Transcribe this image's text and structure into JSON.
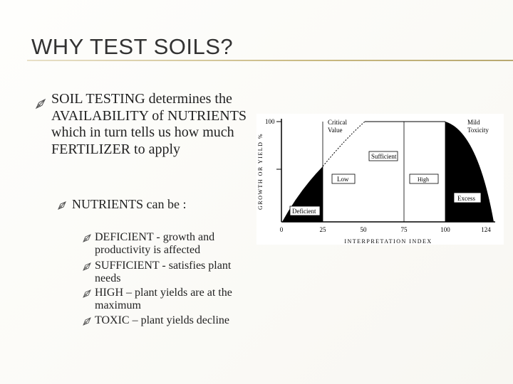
{
  "slide": {
    "title": "WHY TEST SOILS?",
    "bullet": "SOIL TESTING determines the AVAILABILITY of NUTRIENTS which in turn tells us how much FERTILIZER to apply",
    "sub_bullet": "NUTRIENTS can be :",
    "items": [
      "DEFICIENT - growth and productivity is affected",
      "SUFFICIENT - satisfies plant needs",
      "HIGH – plant yields are at the maximum",
      "TOXIC – plant yields decline"
    ]
  },
  "figure": {
    "y_label": "GROWTH OR YIELD %",
    "y_top": "100",
    "x_label": "INTERPRETATION INDEX",
    "x_ticks": [
      "0",
      "25",
      "50",
      "75",
      "100",
      "124"
    ],
    "critical": [
      "Critical",
      "Value"
    ],
    "toxicity": [
      "Mild",
      "Toxicity"
    ],
    "sufficient": "Sufficient",
    "low": "Low",
    "high": "High",
    "excess": "Excess",
    "deficient": "Deficient"
  }
}
